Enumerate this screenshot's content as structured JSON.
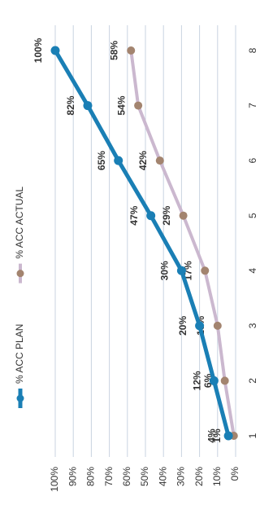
{
  "chart_data": {
    "type": "line",
    "categories": [
      "1",
      "2",
      "3",
      "4",
      "5",
      "6",
      "7",
      "8"
    ],
    "series": [
      {
        "name": "% ACC PLAN",
        "color": "#1a7fb5",
        "marker_color": "#1a7fb5",
        "values": [
          4,
          12,
          20,
          30,
          47,
          65,
          82,
          100
        ],
        "value_labels": [
          "4%",
          "12%",
          "20%",
          "30%",
          "47%",
          "65%",
          "82%",
          "100%"
        ]
      },
      {
        "name": "% ACC ACTUAL",
        "color": "#cbb8cf",
        "marker_color": "#a3846f",
        "values": [
          1,
          6,
          10,
          17,
          29,
          42,
          54,
          58
        ],
        "value_labels": [
          "1%",
          "6%",
          "10%",
          "17%",
          "29%",
          "42%",
          "54%",
          "58%"
        ]
      }
    ],
    "ylim": [
      0,
      100
    ],
    "yticks": [
      {
        "value": 0,
        "label": "0%"
      },
      {
        "value": 10,
        "label": "10%"
      },
      {
        "value": 20,
        "label": "20%"
      },
      {
        "value": 30,
        "label": "30%"
      },
      {
        "value": 40,
        "label": "40%"
      },
      {
        "value": 50,
        "label": "50%"
      },
      {
        "value": 60,
        "label": "60%"
      },
      {
        "value": 70,
        "label": "70%"
      },
      {
        "value": 80,
        "label": "80%"
      },
      {
        "value": 90,
        "label": "90%"
      },
      {
        "value": 100,
        "label": "100%"
      }
    ],
    "grid": true,
    "legend": "top"
  }
}
